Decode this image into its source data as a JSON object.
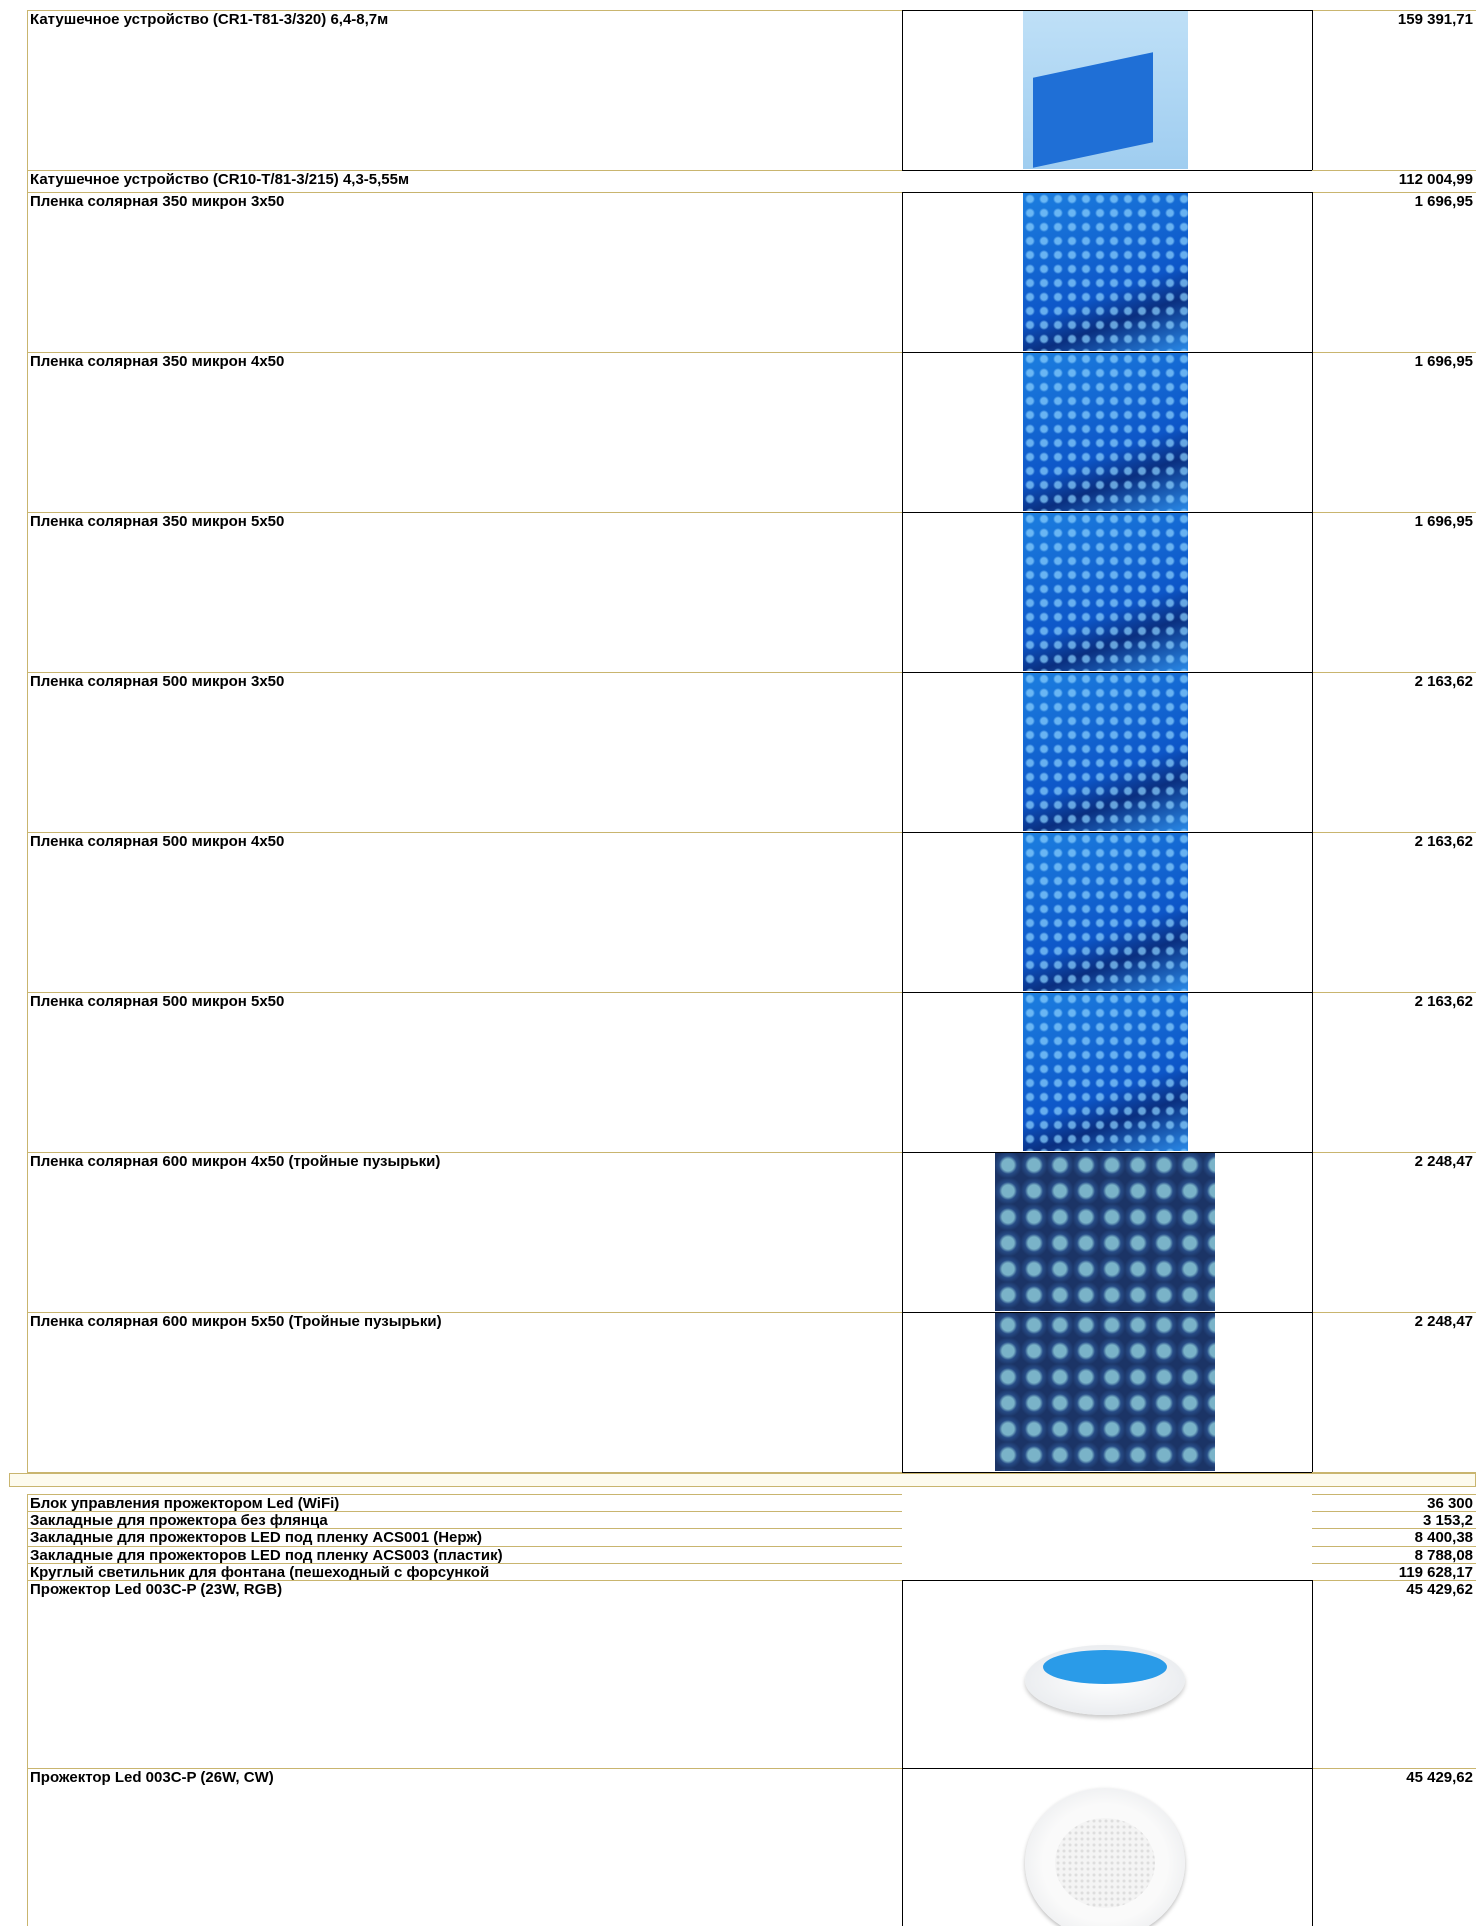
{
  "groups": [
    {
      "rows": [
        {
          "name": "Катушечное устройство (CR1-T81-3/320) 6,4-8,7м",
          "price": "159 391,71"
        },
        {
          "name": "Катушечное устройство (CR10-T/81-3/215) 4,3-5,55м",
          "price": "112 004,99"
        },
        {
          "name": "Пленка солярная 350 микрон 3х50",
          "price": "1 696,95"
        },
        {
          "name": "Пленка солярная 350 микрон 4х50",
          "price": "1 696,95"
        },
        {
          "name": "Пленка солярная 350 микрон 5х50",
          "price": "1 696,95"
        },
        {
          "name": "Пленка солярная 500 микрон 3х50",
          "price": "2 163,62"
        },
        {
          "name": "Пленка солярная 500 микрон 4х50",
          "price": "2 163,62"
        },
        {
          "name": "Пленка солярная 500 микрон 5х50",
          "price": "2 163,62"
        },
        {
          "name": "Пленка солярная 600 микрон 4х50 (тройные пузырьки)",
          "price": "2 248,47"
        },
        {
          "name": "Пленка солярная 600 микрон 5х50 (Тройные пузырьки)",
          "price": "2 248,47"
        }
      ]
    },
    {
      "rows": [
        {
          "name": "Блок управления прожектором Led (WiFi)",
          "price": "36 300"
        },
        {
          "name": "Закладные для прожектора без флянца",
          "price": "3 153,2"
        },
        {
          "name": "Закладные для прожекторов LED под пленку ACS001 (Нерж)",
          "price": "8 400,38"
        },
        {
          "name": "Закладные для прожекторов LED под пленку ACS003 (пластик)",
          "price": "8 788,08"
        },
        {
          "name": "Круглый светильник для фонтана (пешеходный с форсункой",
          "price": "119 628,17"
        },
        {
          "name": "Прожектор Led 003C-P (23W, RGB)",
          "price": "45 429,62"
        },
        {
          "name": "Прожектор Led 003C-P (26W, CW)",
          "price": "45 429,62"
        }
      ]
    }
  ]
}
